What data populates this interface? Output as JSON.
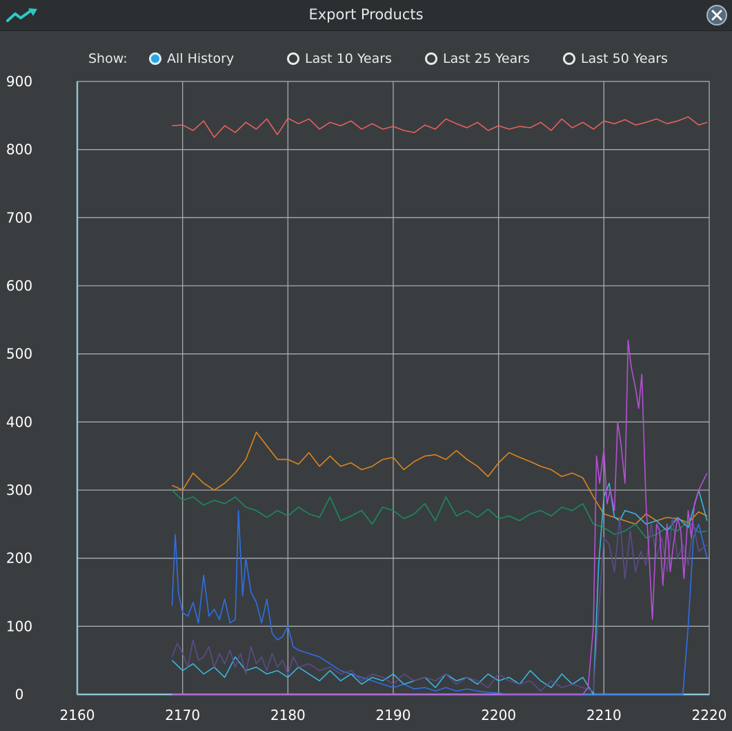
{
  "window": {
    "title": "Export Products",
    "app_icon": "trend-up-icon",
    "close_icon": "close-icon"
  },
  "filters": {
    "label": "Show:",
    "options": [
      {
        "label": "All History",
        "selected": true
      },
      {
        "label": "Last 10 Years",
        "selected": false
      },
      {
        "label": "Last 25 Years",
        "selected": false
      },
      {
        "label": "Last 50 Years",
        "selected": false
      }
    ]
  },
  "colors": {
    "background": "#393d3f",
    "grid": "#a7adb0",
    "axis": "#8fc4d2",
    "accent": "#2aa6e3"
  },
  "chart_data": {
    "type": "line",
    "xlim": [
      2160,
      2220
    ],
    "ylim": [
      0,
      900
    ],
    "xticks": [
      "2160",
      "2170",
      "2180",
      "2190",
      "2200",
      "2210",
      "2220"
    ],
    "yticks": [
      "0",
      "100",
      "200",
      "300",
      "400",
      "500",
      "600",
      "700",
      "800",
      "900"
    ],
    "grid": true,
    "series": [
      {
        "color": "#e86060",
        "x": [
          2169,
          2170,
          2171,
          2172,
          2173,
          2174,
          2175,
          2176,
          2177,
          2178,
          2179,
          2180,
          2181,
          2182,
          2183,
          2184,
          2185,
          2186,
          2187,
          2188,
          2189,
          2190,
          2191,
          2192,
          2193,
          2194,
          2195,
          2196,
          2197,
          2198,
          2199,
          2200,
          2201,
          2202,
          2203,
          2204,
          2205,
          2206,
          2207,
          2208,
          2209,
          2210,
          2211,
          2212,
          2213,
          2214,
          2215,
          2216,
          2217,
          2218,
          2219,
          2219.8
        ],
        "y": [
          835,
          836,
          828,
          842,
          818,
          835,
          825,
          840,
          830,
          845,
          822,
          846,
          838,
          845,
          830,
          840,
          835,
          842,
          830,
          838,
          830,
          834,
          828,
          825,
          836,
          830,
          845,
          838,
          832,
          840,
          828,
          835,
          830,
          834,
          832,
          840,
          828,
          845,
          832,
          840,
          830,
          842,
          838,
          844,
          836,
          840,
          845,
          838,
          842,
          848,
          836,
          840
        ]
      },
      {
        "color": "#e0841e",
        "x": [
          2169,
          2170,
          2171,
          2172,
          2173,
          2174,
          2175,
          2176,
          2177,
          2178,
          2179,
          2180,
          2181,
          2182,
          2183,
          2184,
          2185,
          2186,
          2187,
          2188,
          2189,
          2190,
          2191,
          2192,
          2193,
          2194,
          2195,
          2196,
          2197,
          2198,
          2199,
          2200,
          2201,
          2202,
          2203,
          2204,
          2205,
          2206,
          2207,
          2208,
          2209,
          2210,
          2211,
          2212,
          2213,
          2214,
          2215,
          2216,
          2217,
          2218,
          2219,
          2219.8
        ],
        "y": [
          307,
          300,
          325,
          310,
          300,
          310,
          325,
          345,
          385,
          365,
          345,
          345,
          338,
          355,
          335,
          350,
          335,
          340,
          330,
          335,
          345,
          348,
          330,
          342,
          350,
          352,
          345,
          358,
          345,
          335,
          320,
          340,
          355,
          348,
          342,
          335,
          330,
          320,
          325,
          318,
          290,
          265,
          260,
          255,
          250,
          265,
          255,
          260,
          258,
          252,
          268,
          262
        ]
      },
      {
        "color": "#1a8a64",
        "x": [
          2169,
          2170,
          2171,
          2172,
          2173,
          2174,
          2175,
          2176,
          2177,
          2178,
          2179,
          2180,
          2181,
          2182,
          2183,
          2184,
          2185,
          2186,
          2187,
          2188,
          2189,
          2190,
          2191,
          2192,
          2193,
          2194,
          2195,
          2196,
          2197,
          2198,
          2199,
          2200,
          2201,
          2202,
          2203,
          2204,
          2205,
          2206,
          2207,
          2208,
          2209,
          2210,
          2211,
          2212,
          2213,
          2214,
          2215,
          2216,
          2217,
          2218,
          2219,
          2219.8
        ],
        "y": [
          300,
          285,
          290,
          278,
          285,
          280,
          290,
          275,
          270,
          260,
          270,
          262,
          275,
          265,
          260,
          290,
          255,
          262,
          270,
          250,
          275,
          270,
          258,
          265,
          280,
          255,
          290,
          262,
          270,
          260,
          272,
          258,
          262,
          255,
          265,
          270,
          262,
          275,
          270,
          280,
          250,
          245,
          235,
          240,
          250,
          230,
          235,
          245,
          240,
          255,
          238,
          240
        ]
      },
      {
        "color": "#2f6fe8",
        "x": [
          2169,
          2169.3,
          2169.6,
          2170,
          2170.5,
          2171,
          2171.5,
          2172,
          2172.5,
          2173,
          2173.5,
          2174,
          2174.5,
          2175,
          2175.3,
          2175.7,
          2176,
          2176.5,
          2177,
          2177.5,
          2178,
          2178.5,
          2179,
          2179.5,
          2180,
          2180.5,
          2181,
          2182,
          2183,
          2184,
          2185,
          2186,
          2187,
          2188,
          2189,
          2190,
          2191,
          2192,
          2193,
          2194,
          2195,
          2196,
          2197,
          2198,
          2199,
          2200,
          2201,
          2202,
          2203,
          2204,
          2205,
          2206,
          2207,
          2208,
          2209,
          2210,
          2211,
          2212,
          2213,
          2214,
          2215,
          2216,
          2217,
          2217.5,
          2218,
          2218.5,
          2219,
          2219.8
        ],
        "y": [
          130,
          235,
          150,
          120,
          115,
          135,
          105,
          175,
          115,
          125,
          110,
          140,
          105,
          110,
          270,
          145,
          200,
          150,
          135,
          105,
          140,
          90,
          80,
          85,
          100,
          70,
          65,
          60,
          55,
          45,
          35,
          30,
          25,
          20,
          15,
          10,
          15,
          8,
          10,
          5,
          10,
          5,
          8,
          5,
          3,
          2,
          0,
          0,
          0,
          0,
          0,
          0,
          0,
          0,
          0,
          0,
          0,
          0,
          0,
          0,
          0,
          0,
          0,
          0,
          100,
          230,
          250,
          200
        ]
      },
      {
        "color": "#3bb4e0",
        "x": [
          2169,
          2170,
          2171,
          2172,
          2173,
          2174,
          2175,
          2176,
          2177,
          2178,
          2179,
          2180,
          2181,
          2182,
          2183,
          2184,
          2185,
          2186,
          2187,
          2188,
          2189,
          2190,
          2191,
          2192,
          2193,
          2194,
          2195,
          2196,
          2197,
          2198,
          2199,
          2200,
          2201,
          2202,
          2203,
          2204,
          2205,
          2206,
          2207,
          2208,
          2209,
          2209.5,
          2210,
          2210.5,
          2211,
          2211.5,
          2212,
          2213,
          2214,
          2215,
          2216,
          2217,
          2218,
          2219,
          2219.8
        ],
        "y": [
          50,
          35,
          45,
          30,
          40,
          25,
          55,
          35,
          40,
          30,
          35,
          25,
          40,
          30,
          20,
          35,
          20,
          30,
          15,
          25,
          20,
          30,
          15,
          20,
          25,
          10,
          30,
          20,
          25,
          15,
          30,
          20,
          25,
          15,
          35,
          20,
          10,
          30,
          15,
          25,
          0,
          190,
          290,
          310,
          260,
          255,
          270,
          265,
          250,
          255,
          240,
          260,
          245,
          300,
          255
        ]
      },
      {
        "color": "#5c4b8a",
        "x": [
          2169,
          2169.5,
          2170,
          2170.5,
          2171,
          2171.5,
          2172,
          2172.5,
          2173,
          2173.5,
          2174,
          2174.5,
          2175,
          2175.5,
          2176,
          2176.5,
          2177,
          2177.5,
          2178,
          2178.5,
          2179,
          2179.5,
          2180,
          2180.5,
          2181,
          2182,
          2183,
          2184,
          2185,
          2186,
          2187,
          2188,
          2189,
          2190,
          2191,
          2192,
          2193,
          2194,
          2195,
          2196,
          2197,
          2198,
          2199,
          2200,
          2201,
          2202,
          2203,
          2204,
          2205,
          2206,
          2207,
          2208,
          2209,
          2209.5,
          2210,
          2210.5,
          2211,
          2211.5,
          2212,
          2212.5,
          2213,
          2213.5,
          2214,
          2214.5,
          2215,
          2215.5,
          2216,
          2216.5,
          2217,
          2217.5,
          2218,
          2218.5,
          2219,
          2219.8
        ],
        "y": [
          55,
          75,
          60,
          40,
          80,
          50,
          55,
          70,
          40,
          60,
          45,
          65,
          40,
          60,
          30,
          70,
          45,
          55,
          35,
          60,
          40,
          50,
          30,
          55,
          40,
          45,
          35,
          40,
          30,
          35,
          20,
          30,
          25,
          15,
          30,
          20,
          25,
          20,
          30,
          15,
          25,
          20,
          10,
          30,
          20,
          15,
          20,
          5,
          20,
          10,
          15,
          10,
          5,
          120,
          230,
          220,
          180,
          260,
          170,
          240,
          180,
          210,
          190,
          250,
          200,
          230,
          180,
          260,
          200,
          220,
          190,
          250,
          210,
          220
        ]
      },
      {
        "color": "#b64fd6",
        "x": [
          2169,
          2170,
          2172,
          2174,
          2176,
          2178,
          2180,
          2182,
          2184,
          2186,
          2188,
          2190,
          2192,
          2194,
          2196,
          2198,
          2200,
          2202,
          2204,
          2206,
          2208,
          2208.5,
          2209,
          2209.3,
          2209.6,
          2210,
          2210.3,
          2210.6,
          2211,
          2211.3,
          2211.6,
          2212,
          2212.3,
          2212.6,
          2213,
          2213.3,
          2213.6,
          2214,
          2214.3,
          2214.6,
          2215,
          2215.3,
          2215.6,
          2216,
          2216.3,
          2216.6,
          2217,
          2217.3,
          2217.6,
          2218,
          2218.3,
          2218.6,
          2219,
          2219.8
        ],
        "y": [
          0,
          0,
          0,
          0,
          0,
          0,
          0,
          0,
          0,
          0,
          0,
          0,
          0,
          0,
          0,
          0,
          0,
          0,
          0,
          0,
          0,
          10,
          100,
          350,
          310,
          360,
          280,
          300,
          270,
          400,
          370,
          310,
          520,
          480,
          450,
          420,
          470,
          280,
          200,
          110,
          250,
          240,
          160,
          250,
          180,
          220,
          260,
          240,
          170,
          270,
          230,
          280,
          300,
          325
        ]
      }
    ]
  }
}
